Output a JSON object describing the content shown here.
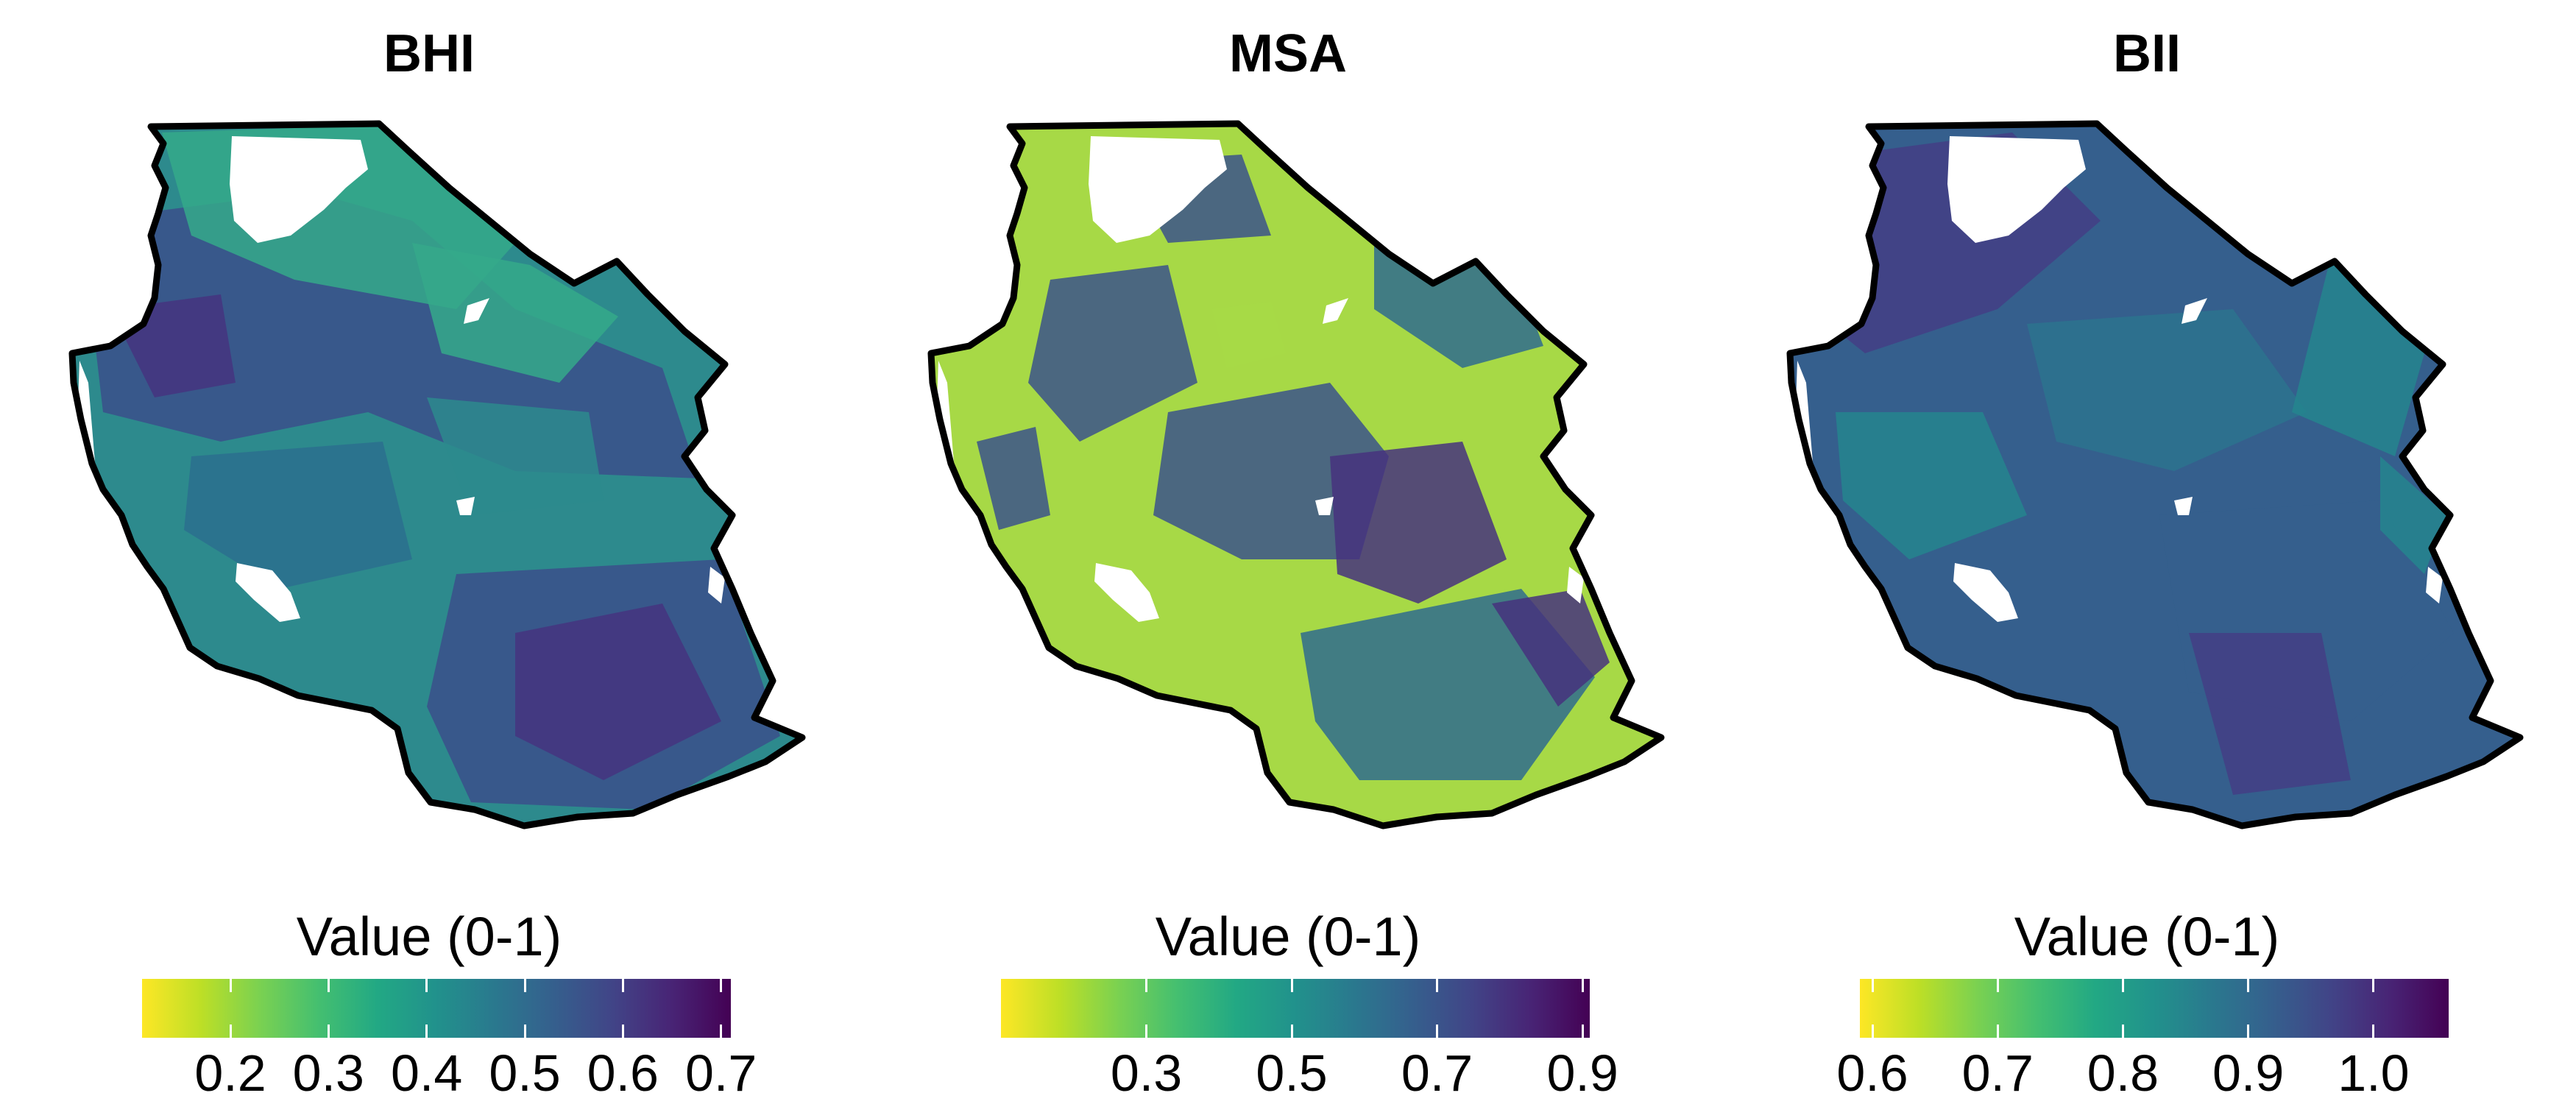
{
  "panels": [
    {
      "title": "BHI",
      "legend_title": "Value (0-1)",
      "scale": {
        "min": 0.11,
        "max": 0.71
      },
      "ticks": [
        {
          "value": 0.2,
          "label": "0.2"
        },
        {
          "value": 0.3,
          "label": "0.3"
        },
        {
          "value": 0.4,
          "label": "0.4"
        },
        {
          "value": 0.5,
          "label": "0.5"
        },
        {
          "value": 0.6,
          "label": "0.6"
        },
        {
          "value": 0.7,
          "label": "0.7"
        }
      ],
      "palette": "viridis-reversed",
      "dominant_colors": [
        "#2d8a8d",
        "#35a98a",
        "#2c6e8e",
        "#3b4f8b",
        "#45347f"
      ]
    },
    {
      "title": "MSA",
      "legend_title": "Value (0-1)",
      "scale": {
        "min": 0.1,
        "max": 0.91
      },
      "ticks": [
        {
          "value": 0.3,
          "label": "0.3"
        },
        {
          "value": 0.5,
          "label": "0.5"
        },
        {
          "value": 0.7,
          "label": "0.7"
        },
        {
          "value": 0.9,
          "label": "0.9"
        }
      ],
      "palette": "viridis-reversed",
      "dominant_colors": [
        "#a7d946",
        "#8ed645",
        "#3b528b",
        "#2f6b8e",
        "#46327e"
      ]
    },
    {
      "title": "BII",
      "legend_title": "Value (0-1)",
      "scale": {
        "min": 0.59,
        "max": 1.06
      },
      "ticks": [
        {
          "value": 0.6,
          "label": "0.6"
        },
        {
          "value": 0.7,
          "label": "0.7"
        },
        {
          "value": 0.8,
          "label": "0.8"
        },
        {
          "value": 0.9,
          "label": "0.9"
        },
        {
          "value": 1.0,
          "label": "1.0"
        }
      ],
      "palette": "viridis-reversed",
      "dominant_colors": [
        "#355f8d",
        "#3b528b",
        "#2c738e",
        "#433e85",
        "#25858e"
      ]
    }
  ],
  "outline_color": "#000000"
}
